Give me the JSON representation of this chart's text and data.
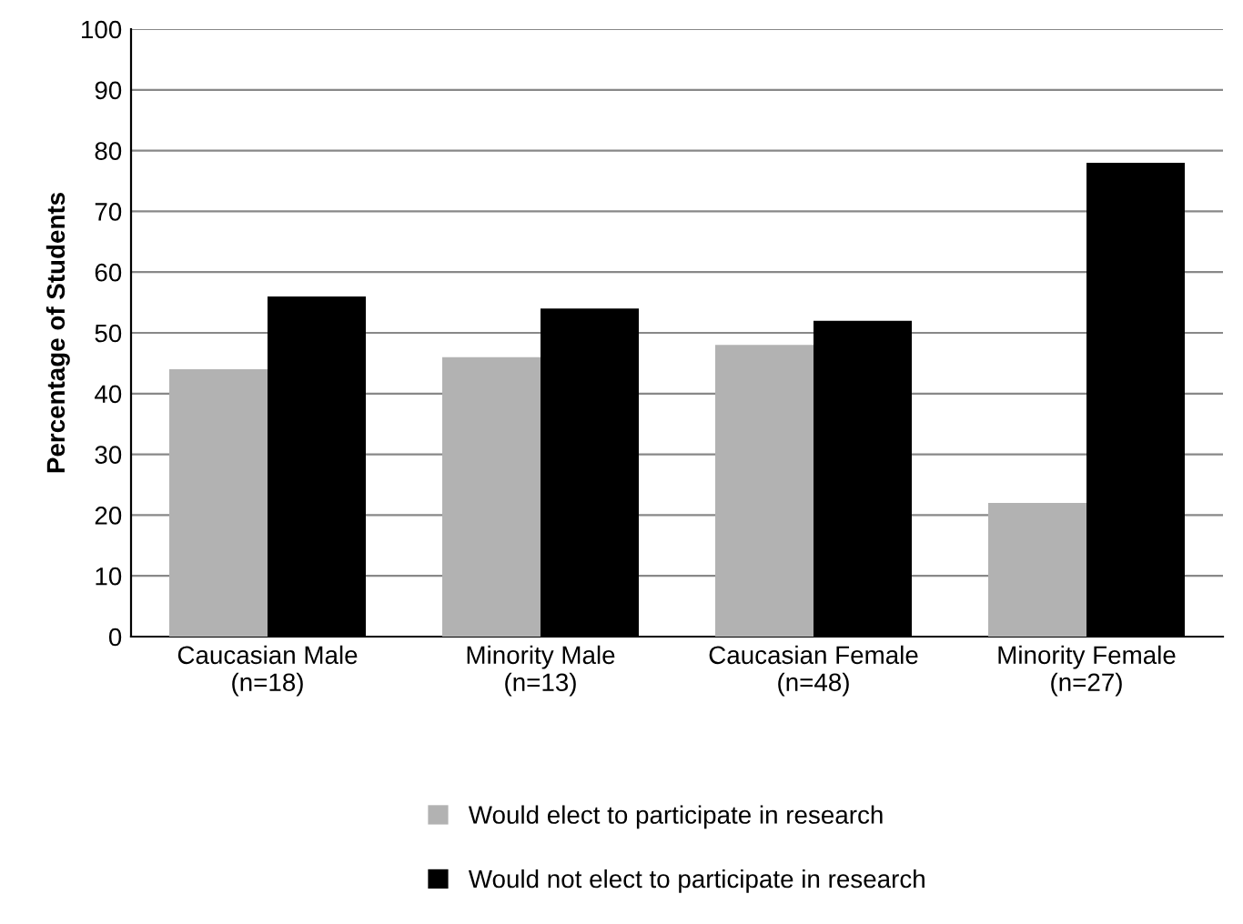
{
  "chart_data": {
    "type": "bar",
    "ylabel": "Percentage of Students",
    "categories": [
      "Caucasian Male\n(n=18)",
      "Minority Male\n(n=13)",
      "Caucasian Female\n(n=48)",
      "Minority Female\n(n=27)"
    ],
    "series": [
      {
        "name": "Would elect to participate in research",
        "color": "#b2b2b2",
        "values": [
          44,
          46,
          48,
          22
        ]
      },
      {
        "name": "Would not elect to participate in research",
        "color": "#000000",
        "values": [
          56,
          54,
          52,
          78
        ]
      }
    ],
    "ylim": [
      0,
      100
    ],
    "yticks": [
      0,
      10,
      20,
      30,
      40,
      50,
      60,
      70,
      80,
      90,
      100
    ],
    "grid": "y",
    "legend": "bottom"
  }
}
